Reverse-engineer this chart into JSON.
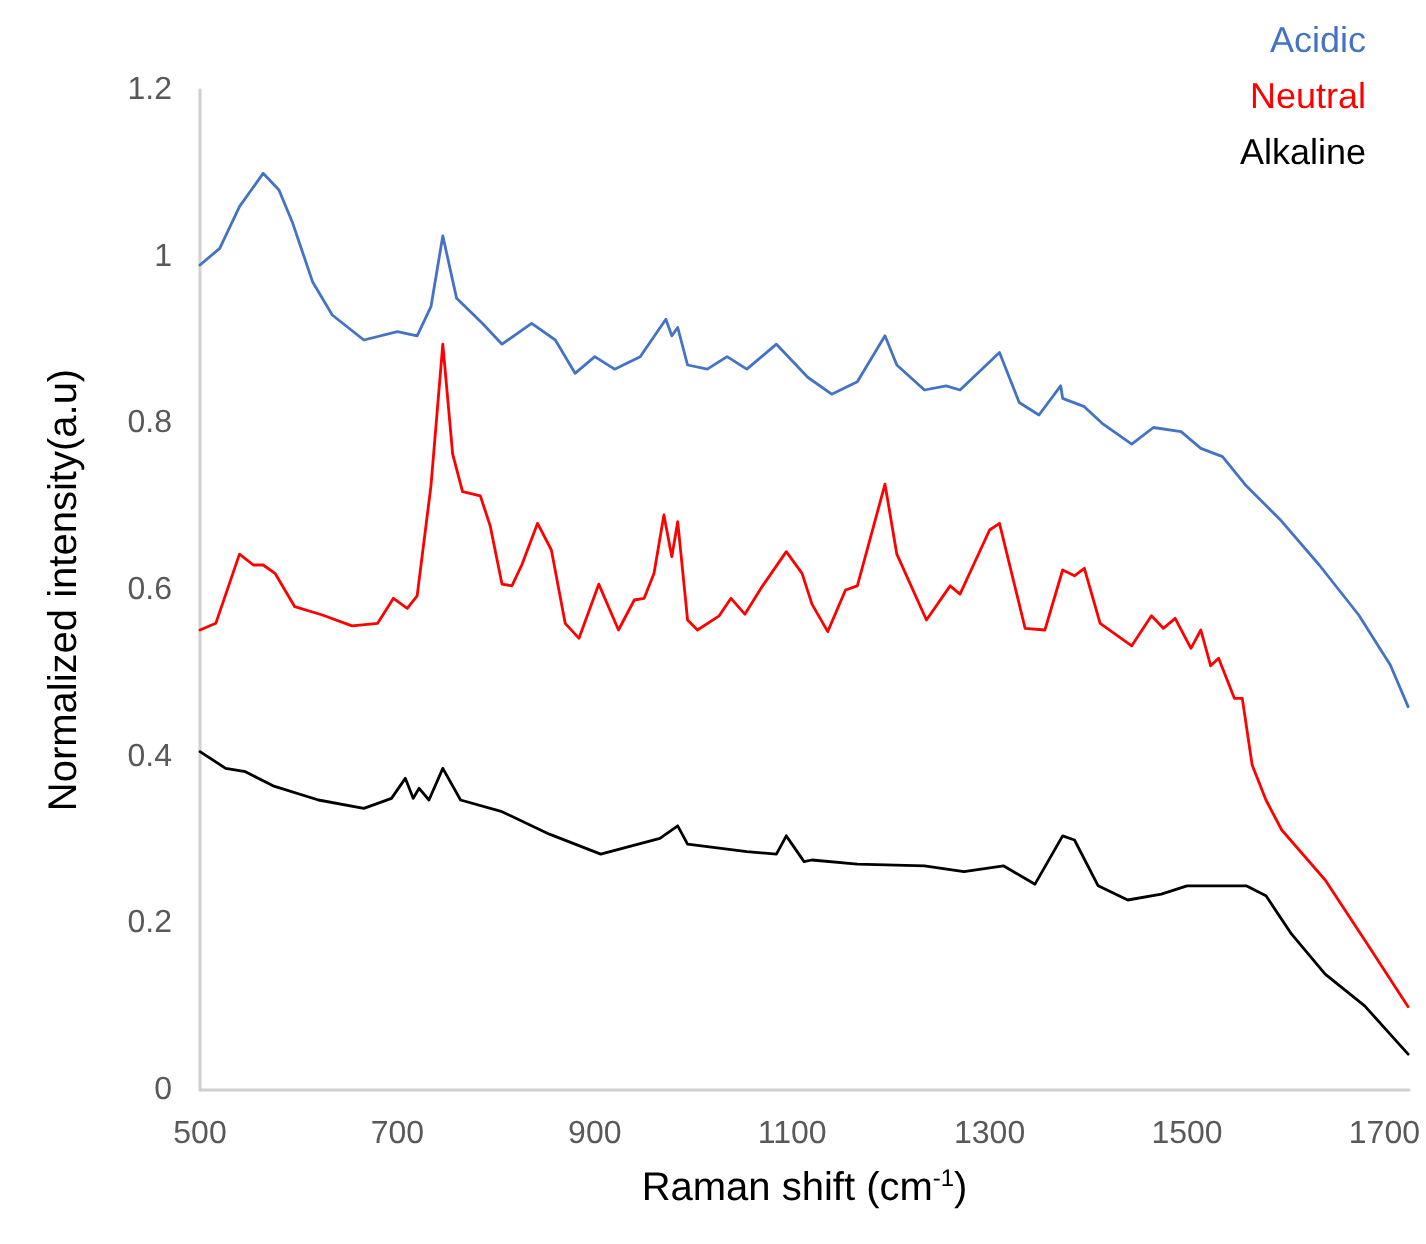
{
  "chart_data": {
    "type": "line",
    "xlabel": "Raman shift (cm$^{-1}$)",
    "ylabel": "Normalized intensity(a.u)",
    "xlim": [
      500,
      1725
    ],
    "xticks": [
      500,
      700,
      900,
      1100,
      1300,
      1500,
      1700
    ],
    "ylim": [
      0,
      1.2
    ],
    "yticks": [
      {
        "value": 0,
        "label": "0"
      },
      {
        "value": 0.2,
        "label": "0.2"
      },
      {
        "value": 0.4,
        "label": "0.4"
      },
      {
        "value": 0.6,
        "label": "0.6"
      },
      {
        "value": 0.8,
        "label": "0.8"
      },
      {
        "value": 1,
        "label": "1"
      },
      {
        "value": 1.2,
        "label": "1.2"
      }
    ],
    "grid": false,
    "legend": "top right",
    "marker": "none",
    "line_style": "solid",
    "series": [
      {
        "name": "Acidic",
        "color": "#4472c4",
        "x": [
          500,
          520,
          540,
          564,
          580,
          594,
          614,
          634,
          666,
          700,
          720,
          734,
          746,
          760,
          786,
          806,
          836,
          860,
          880,
          900,
          920,
          946,
          972,
          978,
          984,
          994,
          1014,
          1034,
          1054,
          1084,
          1116,
          1140,
          1166,
          1194,
          1206,
          1234,
          1256,
          1270,
          1310,
          1330,
          1350,
          1372,
          1374,
          1396,
          1414,
          1444,
          1466,
          1494,
          1514,
          1536,
          1560,
          1594,
          1634,
          1674,
          1706,
          1724
        ],
        "values": [
          0.99,
          1.01,
          1.06,
          1.1,
          1.08,
          1.04,
          0.97,
          0.93,
          0.9,
          0.91,
          0.905,
          0.94,
          1.025,
          0.95,
          0.92,
          0.895,
          0.92,
          0.9,
          0.86,
          0.88,
          0.865,
          0.88,
          0.925,
          0.905,
          0.915,
          0.87,
          0.865,
          0.88,
          0.865,
          0.895,
          0.855,
          0.835,
          0.85,
          0.905,
          0.87,
          0.84,
          0.845,
          0.84,
          0.885,
          0.825,
          0.81,
          0.845,
          0.83,
          0.82,
          0.8,
          0.775,
          0.795,
          0.79,
          0.77,
          0.76,
          0.725,
          0.685,
          0.63,
          0.57,
          0.51,
          0.46
        ]
      },
      {
        "name": "Neutral",
        "color": "#ff0000",
        "x": [
          500,
          516,
          540,
          554,
          564,
          576,
          596,
          624,
          654,
          680,
          696,
          710,
          720,
          734,
          746,
          756,
          766,
          784,
          794,
          806,
          816,
          826,
          842,
          856,
          870,
          884,
          904,
          924,
          940,
          950,
          960,
          970,
          978,
          984,
          994,
          1004,
          1026,
          1038,
          1052,
          1070,
          1094,
          1110,
          1120,
          1136,
          1154,
          1166,
          1194,
          1206,
          1236,
          1260,
          1270,
          1300,
          1310,
          1336,
          1356,
          1374,
          1386,
          1396,
          1412,
          1444,
          1464,
          1476,
          1488,
          1504,
          1514,
          1524,
          1532,
          1548,
          1556,
          1566,
          1580,
          1596,
          1640,
          1680,
          1724
        ],
        "values": [
          0.552,
          0.56,
          0.643,
          0.63,
          0.63,
          0.62,
          0.58,
          0.57,
          0.557,
          0.56,
          0.59,
          0.578,
          0.593,
          0.725,
          0.895,
          0.763,
          0.718,
          0.713,
          0.677,
          0.607,
          0.605,
          0.63,
          0.68,
          0.648,
          0.56,
          0.542,
          0.607,
          0.552,
          0.588,
          0.59,
          0.62,
          0.69,
          0.64,
          0.682,
          0.564,
          0.552,
          0.569,
          0.59,
          0.571,
          0.605,
          0.646,
          0.62,
          0.583,
          0.55,
          0.6,
          0.605,
          0.727,
          0.643,
          0.564,
          0.605,
          0.595,
          0.672,
          0.68,
          0.554,
          0.552,
          0.624,
          0.617,
          0.626,
          0.56,
          0.533,
          0.569,
          0.554,
          0.566,
          0.53,
          0.552,
          0.509,
          0.518,
          0.47,
          0.47,
          0.39,
          0.348,
          0.312,
          0.252,
          0.18,
          0.1
        ]
      },
      {
        "name": "Alkaline",
        "color": "#000000",
        "x": [
          500,
          526,
          546,
          574,
          620,
          666,
          694,
          708,
          716,
          722,
          732,
          746,
          764,
          806,
          854,
          906,
          966,
          984,
          994,
          1054,
          1084,
          1094,
          1112,
          1120,
          1166,
          1234,
          1274,
          1314,
          1346,
          1374,
          1386,
          1410,
          1440,
          1474,
          1500,
          1526,
          1560,
          1580,
          1606,
          1640,
          1680,
          1724
        ],
        "values": [
          0.406,
          0.386,
          0.382,
          0.365,
          0.348,
          0.338,
          0.35,
          0.374,
          0.35,
          0.362,
          0.348,
          0.386,
          0.348,
          0.334,
          0.307,
          0.283,
          0.302,
          0.317,
          0.295,
          0.286,
          0.283,
          0.305,
          0.274,
          0.276,
          0.271,
          0.269,
          0.262,
          0.269,
          0.247,
          0.305,
          0.3,
          0.245,
          0.228,
          0.235,
          0.245,
          0.245,
          0.245,
          0.233,
          0.187,
          0.139,
          0.101,
          0.043
        ]
      }
    ]
  }
}
